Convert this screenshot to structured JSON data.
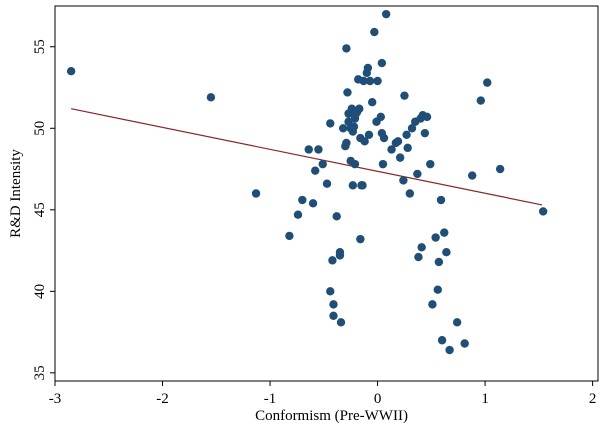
{
  "chart_data": {
    "type": "scatter",
    "title": "",
    "xlabel": "Conformism (Pre-WWII)",
    "ylabel": "R&D Intensity",
    "xlim": [
      -3,
      2.05
    ],
    "ylim": [
      34.5,
      57.5
    ],
    "x_ticks": [
      -3,
      -2,
      -1,
      0,
      1,
      2
    ],
    "x_tick_labels": [
      "-3",
      "-2",
      "-1",
      "0",
      "1",
      "2"
    ],
    "y_ticks": [
      35,
      40,
      45,
      50,
      55
    ],
    "y_tick_labels": [
      "35",
      "40",
      "45",
      "50",
      "55"
    ],
    "grid": false,
    "legend": "none",
    "colors": {
      "points": "#1f4e79",
      "fit_line": "#8b2525",
      "axes": "#000000",
      "background": "#ffffff"
    },
    "fit_line": {
      "x": [
        -2.85,
        1.53
      ],
      "y": [
        51.2,
        45.3
      ]
    },
    "series": [
      {
        "points": [
          [
            -2.85,
            53.5
          ],
          [
            -1.55,
            51.9
          ],
          [
            -1.13,
            46.0
          ],
          [
            -0.82,
            43.4
          ],
          [
            -0.74,
            44.7
          ],
          [
            -0.7,
            45.6
          ],
          [
            -0.64,
            48.7
          ],
          [
            -0.6,
            45.4
          ],
          [
            -0.58,
            47.4
          ],
          [
            -0.55,
            48.7
          ],
          [
            -0.51,
            47.8
          ],
          [
            -0.47,
            46.6
          ],
          [
            -0.44,
            50.3
          ],
          [
            -0.44,
            40.0
          ],
          [
            -0.42,
            41.9
          ],
          [
            -0.41,
            39.2
          ],
          [
            -0.41,
            38.5
          ],
          [
            -0.38,
            44.6
          ],
          [
            -0.35,
            42.2
          ],
          [
            -0.35,
            42.4
          ],
          [
            -0.34,
            38.1
          ],
          [
            -0.32,
            50.0
          ],
          [
            -0.3,
            48.9
          ],
          [
            -0.29,
            49.1
          ],
          [
            -0.29,
            54.9
          ],
          [
            -0.28,
            52.2
          ],
          [
            -0.27,
            50.4
          ],
          [
            -0.27,
            50.9
          ],
          [
            -0.25,
            50.0
          ],
          [
            -0.25,
            48.0
          ],
          [
            -0.24,
            51.2
          ],
          [
            -0.23,
            49.8
          ],
          [
            -0.23,
            46.5
          ],
          [
            -0.22,
            50.1
          ],
          [
            -0.21,
            50.6
          ],
          [
            -0.21,
            47.8
          ],
          [
            -0.2,
            50.9
          ],
          [
            -0.19,
            51.0
          ],
          [
            -0.18,
            53.0
          ],
          [
            -0.17,
            51.2
          ],
          [
            -0.16,
            49.4
          ],
          [
            -0.16,
            43.2
          ],
          [
            -0.15,
            46.5
          ],
          [
            -0.14,
            46.5
          ],
          [
            -0.13,
            52.9
          ],
          [
            -0.12,
            49.2
          ],
          [
            -0.1,
            53.4
          ],
          [
            -0.09,
            53.7
          ],
          [
            -0.08,
            49.6
          ],
          [
            -0.07,
            52.9
          ],
          [
            -0.05,
            51.6
          ],
          [
            -0.03,
            55.9
          ],
          [
            -0.01,
            50.4
          ],
          [
            0.0,
            52.9
          ],
          [
            0.03,
            50.7
          ],
          [
            0.04,
            49.7
          ],
          [
            0.05,
            47.8
          ],
          [
            0.06,
            49.4
          ],
          [
            0.04,
            54.0
          ],
          [
            0.08,
            57.0
          ],
          [
            0.13,
            48.7
          ],
          [
            0.17,
            49.1
          ],
          [
            0.19,
            49.2
          ],
          [
            0.21,
            48.2
          ],
          [
            0.24,
            46.8
          ],
          [
            0.25,
            52.0
          ],
          [
            0.27,
            49.6
          ],
          [
            0.28,
            48.8
          ],
          [
            0.3,
            46.0
          ],
          [
            0.32,
            50.0
          ],
          [
            0.35,
            50.4
          ],
          [
            0.37,
            47.2
          ],
          [
            0.38,
            42.1
          ],
          [
            0.4,
            50.6
          ],
          [
            0.41,
            42.7
          ],
          [
            0.42,
            50.8
          ],
          [
            0.44,
            49.7
          ],
          [
            0.46,
            50.7
          ],
          [
            0.49,
            47.8
          ],
          [
            0.51,
            39.2
          ],
          [
            0.54,
            43.3
          ],
          [
            0.56,
            40.1
          ],
          [
            0.57,
            41.8
          ],
          [
            0.59,
            45.6
          ],
          [
            0.6,
            37.0
          ],
          [
            0.62,
            43.6
          ],
          [
            0.64,
            42.4
          ],
          [
            0.67,
            36.4
          ],
          [
            0.74,
            38.1
          ],
          [
            0.81,
            36.8
          ],
          [
            0.88,
            47.1
          ],
          [
            0.96,
            51.7
          ],
          [
            1.02,
            52.8
          ],
          [
            1.14,
            47.5
          ],
          [
            1.54,
            44.9
          ]
        ]
      }
    ]
  }
}
